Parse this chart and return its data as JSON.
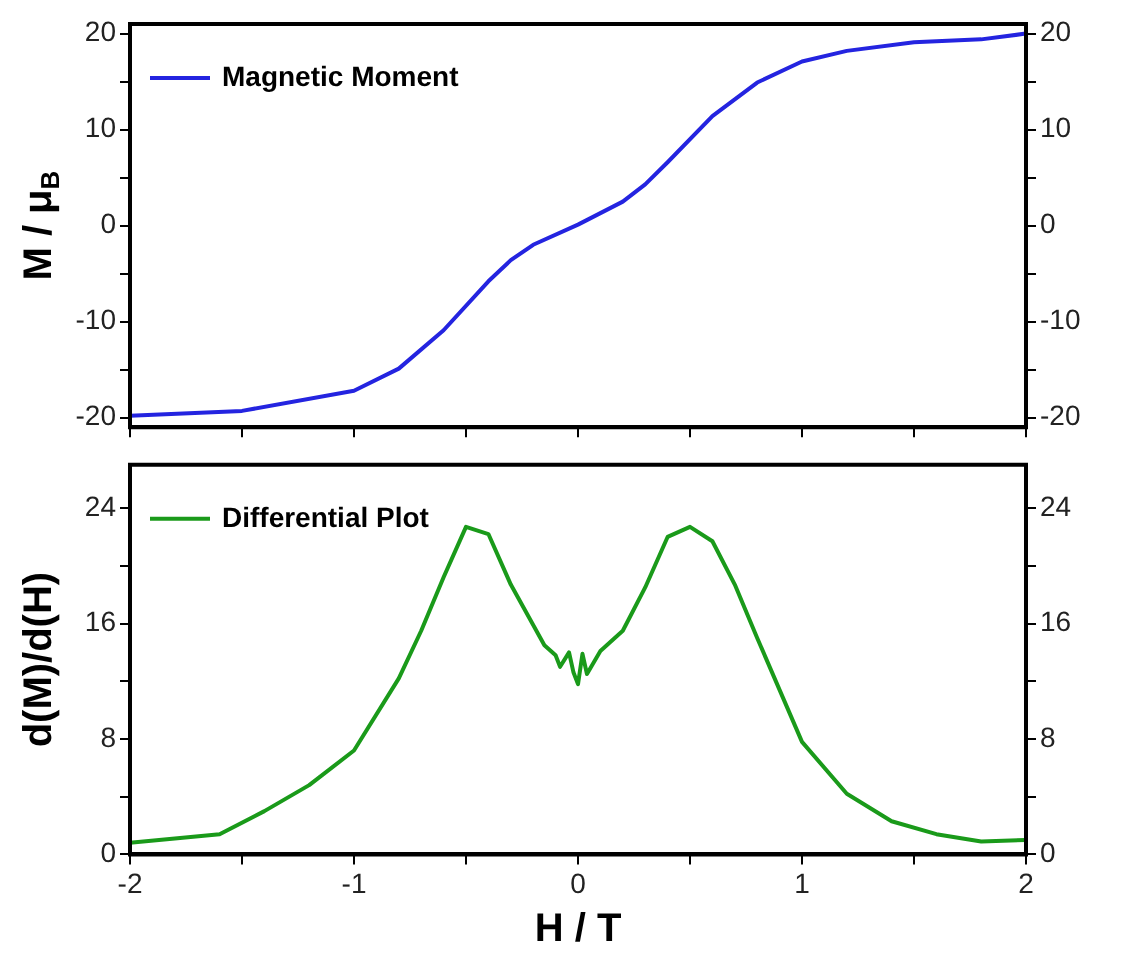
{
  "chart_data": [
    {
      "type": "line",
      "ylabel": "M / μ$_{B}$",
      "xlim": [
        -2,
        2
      ],
      "xticks": [
        -2,
        {
          "value": -1.5,
          "label": null
        },
        -1,
        {
          "value": -0.5,
          "label": null
        },
        0,
        {
          "value": 0.5,
          "label": null
        },
        1,
        {
          "value": 1.5,
          "label": null
        },
        2
      ],
      "ylim": [
        -21,
        21
      ],
      "yticks": [
        -20,
        {
          "value": -15,
          "label": null
        },
        -10,
        {
          "value": -5,
          "label": null
        },
        0,
        {
          "value": 5,
          "label": null
        },
        10,
        {
          "value": 15,
          "label": null
        },
        20
      ],
      "y2lim": [
        -21,
        21
      ],
      "y2ticks": [
        -20,
        {
          "value": -15,
          "label": null
        },
        -10,
        {
          "value": -5,
          "label": null
        },
        0,
        {
          "value": 5,
          "label": null
        },
        10,
        {
          "value": 15,
          "label": null
        },
        20
      ],
      "tick_labels": "y",
      "legend": "top left",
      "marker": "none",
      "series": [
        {
          "name": "Magnetic Moment",
          "color": "#2424e0",
          "x": [
            -2,
            -1.5,
            -1,
            -0.8,
            -0.6,
            -0.4,
            -0.3,
            -0.2,
            0,
            0.2,
            0.3,
            0.4,
            0.6,
            0.8,
            1,
            1.2,
            1.5,
            1.8,
            2
          ],
          "values": [
            -19.8,
            -19.3,
            -17.2,
            -14.9,
            -10.9,
            -5.8,
            -3.6,
            -2,
            0.1,
            2.5,
            4.3,
            6.6,
            11.4,
            14.9,
            17.1,
            18.2,
            19.1,
            19.4,
            20
          ]
        }
      ]
    },
    {
      "type": "line",
      "xlabel": "H / T",
      "ylabel": "d(M)/d(H)",
      "xlim": [
        -2,
        2
      ],
      "xticks": [
        -2,
        {
          "value": -1.5,
          "label": null
        },
        -1,
        {
          "value": -0.5,
          "label": null
        },
        0,
        {
          "value": 0.5,
          "label": null
        },
        1,
        {
          "value": 1.5,
          "label": null
        },
        2
      ],
      "ylim": [
        0,
        27
      ],
      "yticks": [
        0,
        {
          "value": 4,
          "label": null
        },
        8,
        {
          "value": 12,
          "label": null
        },
        16,
        {
          "value": 20,
          "label": null
        },
        24
      ],
      "y2lim": [
        0,
        27
      ],
      "y2ticks": [
        0,
        {
          "value": 4,
          "label": null
        },
        8,
        {
          "value": 12,
          "label": null
        },
        16,
        {
          "value": 20,
          "label": null
        },
        24
      ],
      "legend": "top left",
      "marker": "none",
      "series": [
        {
          "name": "Differential Plot",
          "color": "#1a9a1a",
          "x": [
            -2,
            -1.6,
            -1.4,
            -1.2,
            -1,
            -0.8,
            -0.7,
            -0.6,
            -0.5,
            -0.4,
            -0.3,
            -0.2,
            -0.15,
            -0.1,
            -0.08,
            -0.04,
            -0.02,
            0,
            0.02,
            0.04,
            0.1,
            0.2,
            0.3,
            0.4,
            0.5,
            0.6,
            0.7,
            0.8,
            1,
            1.2,
            1.4,
            1.6,
            1.8,
            2
          ],
          "values": [
            0.8,
            1.4,
            3,
            4.8,
            7.2,
            12.2,
            15.5,
            19.2,
            22.7,
            22.2,
            18.7,
            15.9,
            14.5,
            13.8,
            13,
            14,
            12.6,
            11.8,
            13.9,
            12.5,
            14.1,
            15.5,
            18.5,
            22,
            22.7,
            21.7,
            18.7,
            15,
            7.8,
            4.2,
            2.3,
            1.4,
            0.9,
            1
          ]
        }
      ]
    }
  ]
}
